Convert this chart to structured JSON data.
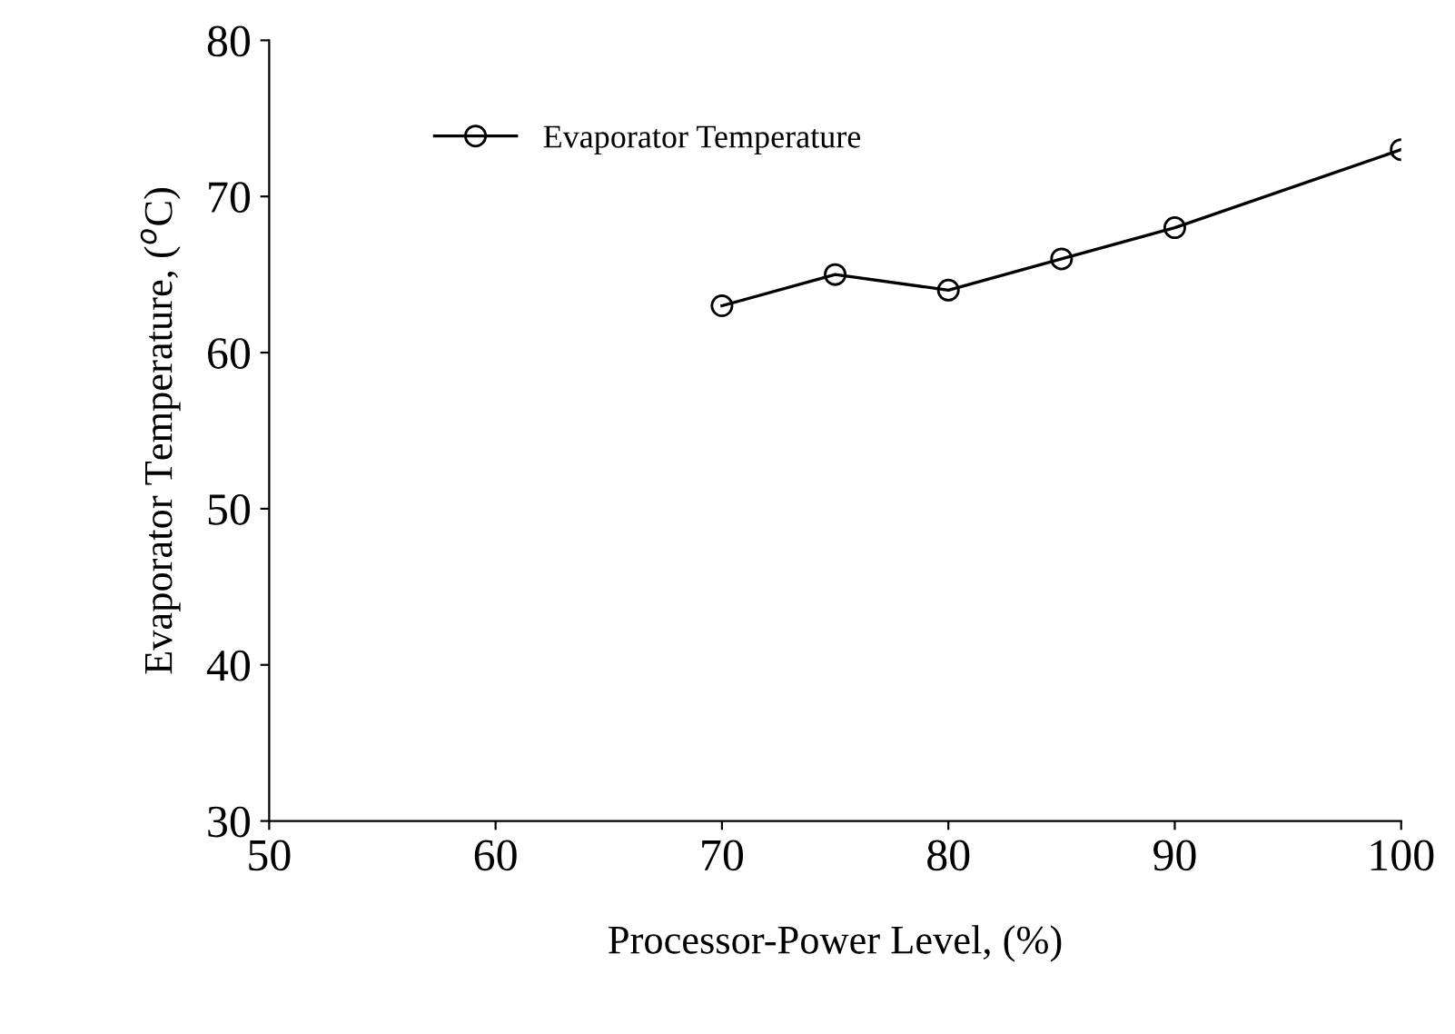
{
  "chart_data": {
    "type": "line",
    "xlabel": "Processor-Power Level, (%)",
    "ylabel": "Evaporator Temperature, ($^{o}$C)",
    "x": [
      70,
      75,
      80,
      85,
      90,
      100
    ],
    "series": [
      {
        "name": "Evaporator Temperature",
        "color": "#000000",
        "values": [
          63,
          65,
          64,
          66,
          68,
          73
        ]
      }
    ],
    "xlim": [
      50,
      100
    ],
    "xticks": [
      50,
      60,
      70,
      80,
      90,
      100
    ],
    "ylim": [
      30,
      80
    ],
    "yticks": [
      30,
      40,
      50,
      60,
      70,
      80
    ],
    "grid": false,
    "legend": "top left",
    "marker": "circle",
    "line_style": "solid"
  }
}
